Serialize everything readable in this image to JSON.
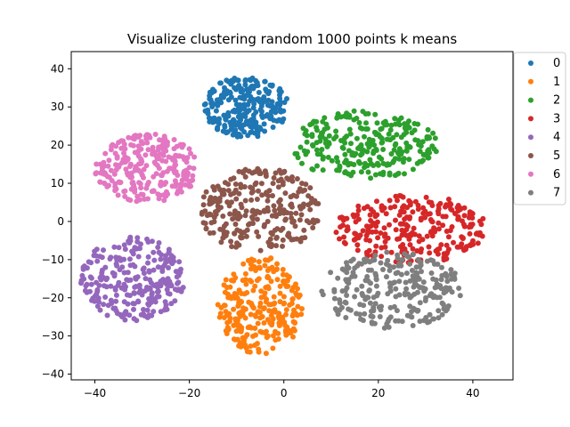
{
  "chart_data": {
    "type": "scatter",
    "title": "Visualize clustering random 1000 points k means",
    "xlabel": "",
    "ylabel": "",
    "xlim": [
      -45,
      48.5
    ],
    "ylim": [
      -41.5,
      44.5
    ],
    "xticks": [
      -40,
      -20,
      0,
      20,
      40
    ],
    "yticks": [
      -40,
      -30,
      -20,
      -10,
      0,
      10,
      20,
      30,
      40
    ],
    "tick_labels": {
      "x": [
        "−40",
        "−20",
        "0",
        "20",
        "40"
      ],
      "y": [
        "−40",
        "−30",
        "−20",
        "−10",
        "0",
        "10",
        "20",
        "30",
        "40"
      ]
    },
    "grid": false,
    "legend_position": "upper-right-outside",
    "series": [
      {
        "name": "0",
        "color": "#1f77b4",
        "center": [
          -8,
          30
        ],
        "spread": [
          9,
          8
        ]
      },
      {
        "name": "1",
        "color": "#ff7f0e",
        "center": [
          -5,
          -22
        ],
        "spread": [
          9,
          13
        ]
      },
      {
        "name": "2",
        "color": "#2ca02c",
        "center": [
          17,
          20
        ],
        "spread": [
          16,
          9
        ]
      },
      {
        "name": "3",
        "color": "#d62728",
        "center": [
          27,
          -2
        ],
        "spread": [
          16,
          9
        ]
      },
      {
        "name": "4",
        "color": "#9467bd",
        "center": [
          -32,
          -15
        ],
        "spread": [
          11,
          11
        ]
      },
      {
        "name": "5",
        "color": "#8c564b",
        "center": [
          -5,
          3
        ],
        "spread": [
          13,
          11
        ]
      },
      {
        "name": "6",
        "color": "#e377c2",
        "center": [
          -29,
          14
        ],
        "spread": [
          11,
          9
        ]
      },
      {
        "name": "7",
        "color": "#7f7f7f",
        "center": [
          23,
          -18
        ],
        "spread": [
          15,
          10
        ]
      }
    ]
  }
}
